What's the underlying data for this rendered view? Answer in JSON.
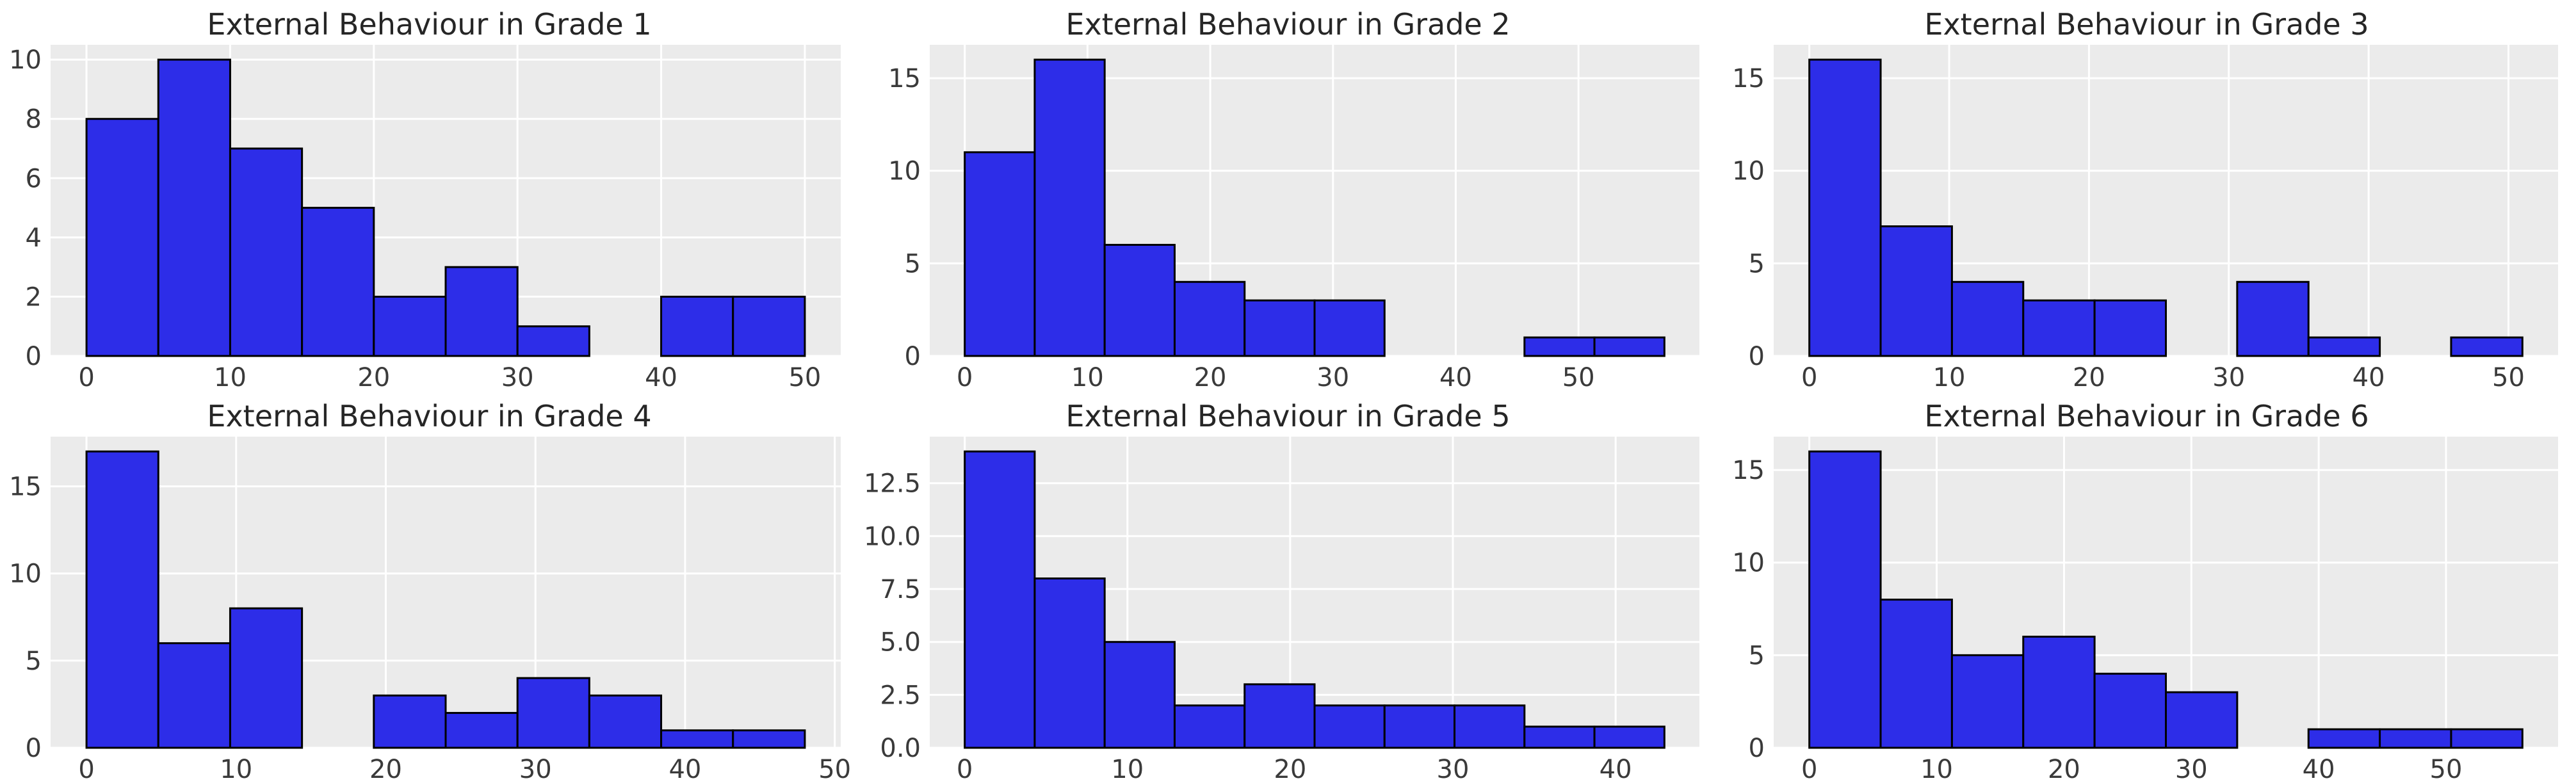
{
  "figure": {
    "background": "#ffffff",
    "rows": 2,
    "cols": 3
  },
  "style": {
    "bar_fill": "#2d2de8",
    "bar_edge": "#000000",
    "plot_bg": "#ebebeb",
    "grid_color": "#ffffff",
    "title_color": "#262626",
    "tick_label_color": "#3a3a3a"
  },
  "chart_data": [
    {
      "type": "bar",
      "subtype": "histogram",
      "title": "External Behaviour in Grade 1",
      "xlabel": "",
      "ylabel": "",
      "bin_start": 0,
      "bin_end": 50,
      "n_bins": 10,
      "counts": [
        8,
        10,
        7,
        5,
        2,
        3,
        1,
        0,
        2,
        2
      ],
      "x_ticks": [
        0,
        10,
        20,
        30,
        40,
        50
      ],
      "x_tick_labels": [
        "0",
        "10",
        "20",
        "30",
        "40",
        "50"
      ],
      "y_ticks": [
        0,
        2,
        4,
        6,
        8,
        10
      ],
      "y_tick_labels": [
        "0",
        "2",
        "4",
        "6",
        "8",
        "10"
      ],
      "y_max": 10,
      "xlim": [
        -2.5,
        52.5
      ],
      "ylim": [
        0,
        10.5
      ],
      "grid": true
    },
    {
      "type": "bar",
      "subtype": "histogram",
      "title": "External Behaviour in Grade 2",
      "xlabel": "",
      "ylabel": "",
      "bin_start": 0,
      "bin_end": 57,
      "n_bins": 10,
      "counts": [
        11,
        16,
        6,
        4,
        3,
        3,
        0,
        0,
        1,
        1
      ],
      "x_ticks": [
        0,
        10,
        20,
        30,
        40,
        50
      ],
      "x_tick_labels": [
        "0",
        "10",
        "20",
        "30",
        "40",
        "50"
      ],
      "y_ticks": [
        0,
        5,
        10,
        15
      ],
      "y_tick_labels": [
        "0",
        "5",
        "10",
        "15"
      ],
      "y_max": 16,
      "xlim": [
        -2.85,
        59.85
      ],
      "ylim": [
        0,
        16.8
      ],
      "grid": true
    },
    {
      "type": "bar",
      "subtype": "histogram",
      "title": "External Behaviour in Grade 3",
      "xlabel": "",
      "ylabel": "",
      "bin_start": 0,
      "bin_end": 51,
      "n_bins": 10,
      "counts": [
        16,
        7,
        4,
        3,
        3,
        0,
        4,
        1,
        0,
        1
      ],
      "x_ticks": [
        0,
        10,
        20,
        30,
        40,
        50
      ],
      "x_tick_labels": [
        "0",
        "10",
        "20",
        "30",
        "40",
        "50"
      ],
      "y_ticks": [
        0,
        5,
        10,
        15
      ],
      "y_tick_labels": [
        "0",
        "5",
        "10",
        "15"
      ],
      "y_max": 16,
      "xlim": [
        -2.55,
        53.55
      ],
      "ylim": [
        0,
        16.8
      ],
      "grid": true
    },
    {
      "type": "bar",
      "subtype": "histogram",
      "title": "External Behaviour in Grade 4",
      "xlabel": "",
      "ylabel": "",
      "bin_start": 0,
      "bin_end": 48,
      "n_bins": 10,
      "counts": [
        17,
        6,
        8,
        0,
        3,
        2,
        4,
        3,
        1,
        1
      ],
      "x_ticks": [
        0,
        10,
        20,
        30,
        40,
        50
      ],
      "x_tick_labels": [
        "0",
        "10",
        "20",
        "30",
        "40",
        "50"
      ],
      "y_ticks": [
        0,
        5,
        10,
        15
      ],
      "y_tick_labels": [
        "0",
        "5",
        "10",
        "15"
      ],
      "y_max": 17,
      "xlim": [
        -2.4,
        50.4
      ],
      "ylim": [
        0,
        17.85
      ],
      "grid": true
    },
    {
      "type": "bar",
      "subtype": "histogram",
      "title": "External Behaviour in Grade 5",
      "xlabel": "",
      "ylabel": "",
      "bin_start": 0,
      "bin_end": 43,
      "n_bins": 10,
      "counts": [
        14,
        8,
        5,
        2,
        3,
        2,
        2,
        2,
        1,
        1
      ],
      "x_ticks": [
        0,
        10,
        20,
        30,
        40
      ],
      "x_tick_labels": [
        "0",
        "10",
        "20",
        "30",
        "40"
      ],
      "y_ticks": [
        0,
        2.5,
        5,
        7.5,
        10,
        12.5
      ],
      "y_tick_labels": [
        "0.0",
        "2.5",
        "5.0",
        "7.5",
        "10.0",
        "12.5"
      ],
      "y_max": 14,
      "xlim": [
        -2.15,
        45.15
      ],
      "ylim": [
        0,
        14.7
      ],
      "grid": true
    },
    {
      "type": "bar",
      "subtype": "histogram",
      "title": "External Behaviour in Grade 6",
      "xlabel": "",
      "ylabel": "",
      "bin_start": 0,
      "bin_end": 56,
      "n_bins": 10,
      "counts": [
        16,
        8,
        5,
        6,
        4,
        3,
        0,
        1,
        1,
        1
      ],
      "x_ticks": [
        0,
        10,
        20,
        30,
        40,
        50
      ],
      "x_tick_labels": [
        "0",
        "10",
        "20",
        "30",
        "40",
        "50"
      ],
      "y_ticks": [
        0,
        5,
        10,
        15
      ],
      "y_tick_labels": [
        "0",
        "5",
        "10",
        "15"
      ],
      "y_max": 16,
      "xlim": [
        -2.8,
        58.8
      ],
      "ylim": [
        0,
        16.8
      ],
      "grid": true
    }
  ]
}
